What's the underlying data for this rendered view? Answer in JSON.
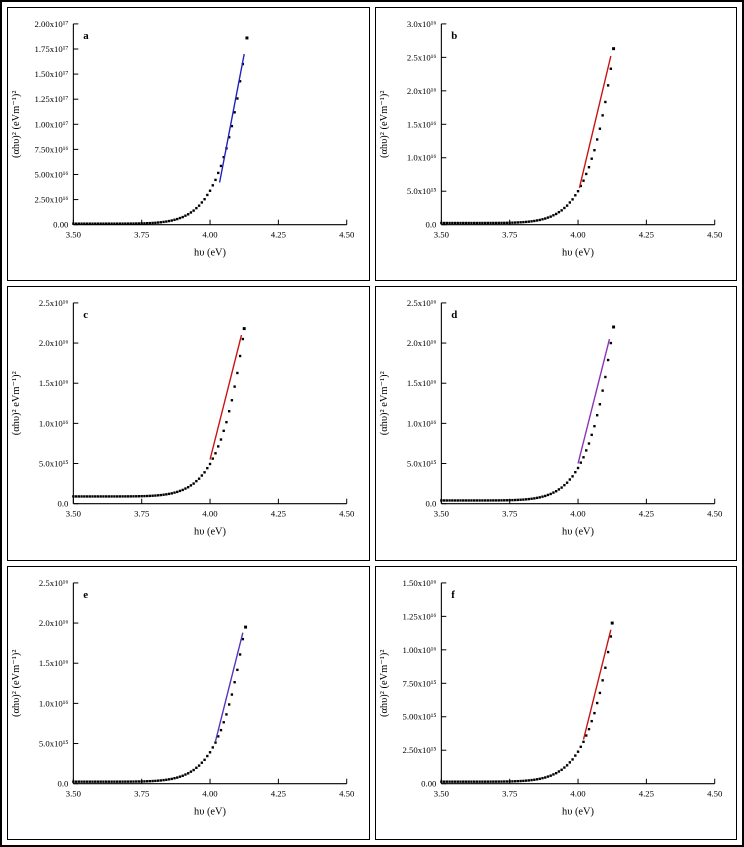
{
  "figure": {
    "background": "#ffffff",
    "border_color": "#000000",
    "panel_border_color": "#000000",
    "point_color": "#000000"
  },
  "chart_data": {
    "type": "scatter",
    "shared": {
      "x_label": "hυ (eV)",
      "x_range": [
        3.5,
        4.5
      ],
      "x_ticks": [
        3.5,
        3.75,
        4.0,
        4.25,
        4.5
      ],
      "x_tick_labels": [
        "3.50",
        "3.75",
        "4.00",
        "4.25",
        "4.50"
      ],
      "marker": "black-square",
      "curve_x": [
        3.5,
        3.52,
        3.54,
        3.56,
        3.58,
        3.6,
        3.62,
        3.64,
        3.66,
        3.68,
        3.7,
        3.72,
        3.74,
        3.76,
        3.78,
        3.8,
        3.82,
        3.84,
        3.86,
        3.88,
        3.9,
        3.92,
        3.94,
        3.96,
        3.98,
        4.0,
        4.02,
        4.04,
        4.06,
        4.08,
        4.1,
        4.12
      ],
      "curve_norm": [
        0,
        0,
        0,
        1e-06,
        2e-06,
        6e-06,
        1.7e-05,
        4.2e-05,
        9.3e-05,
        0.000193,
        0.000376,
        0.000696,
        0.001231,
        0.002101,
        0.003461,
        0.005547,
        0.008645,
        0.013182,
        0.019654,
        0.028787,
        0.041389,
        0.058644,
        0.081802,
        0.112717,
        0.153254,
        0.206216,
        0.27429,
        0.3616,
        0.471908,
        0.611127,
        0.78439,
        1.0
      ]
    },
    "panels": [
      {
        "label": "a",
        "y_label": "(αhυ)² (eVm⁻¹)²",
        "y_max": 2e+17,
        "y_ticks": [
          0,
          2.5e+16,
          5e+16,
          7.5e+16,
          1e+17,
          1.25e+17,
          1.5e+17,
          1.75e+17,
          2e+17
        ],
        "y_tick_labels": [
          "0.00",
          "2.50x10¹⁶",
          "5.00x10¹⁶",
          "7.50x10¹⁶",
          "1.00x10¹⁷",
          "1.25x10¹⁷",
          "1.50x10¹⁷",
          "1.75x10¹⁷",
          "2.00x10¹⁷"
        ],
        "base": 1000000000000000.0,
        "peak": 1.6e+17,
        "outlier": {
          "x": 4.135,
          "y": 1.86e+17
        },
        "fit": {
          "color": "#2020c0",
          "x1": 4.035,
          "y1": 4.2e+16,
          "x2": 4.125,
          "y2": 1.7e+17
        }
      },
      {
        "label": "b",
        "y_label": "(αhυ)² (eVm⁻¹)²",
        "y_max": 3e+16,
        "y_ticks": [
          0,
          5000000000000000.0,
          1e+16,
          1.5e+16,
          2e+16,
          2.5e+16,
          3e+16
        ],
        "y_tick_labels": [
          "0.0",
          "5.0x10¹⁵",
          "1.0x10¹⁶",
          "1.5x10¹⁶",
          "2.0x10¹⁶",
          "2.5x10¹⁶",
          "3.0x10¹⁶"
        ],
        "base": 250000000000000.0,
        "peak": 2.33e+16,
        "outlier": {
          "x": 4.13,
          "y": 2.63e+16
        },
        "fit": {
          "color": "#cc1111",
          "x1": 4.005,
          "y1": 5500000000000000.0,
          "x2": 4.12,
          "y2": 2.52e+16
        }
      },
      {
        "label": "c",
        "y_label": "(αhυ)² eVm⁻¹)²",
        "y_max": 2.5e+16,
        "y_ticks": [
          0,
          5000000000000000.0,
          1e+16,
          1.5e+16,
          2e+16,
          2.5e+16
        ],
        "y_tick_labels": [
          "0.0",
          "5.0x10¹⁵",
          "1.0x10¹⁶",
          "1.5x10¹⁶",
          "2.0x10¹⁶",
          "2.5x10¹⁶"
        ],
        "base": 900000000000000.0,
        "peak": 2.05e+16,
        "outlier": {
          "x": 4.125,
          "y": 2.18e+16
        },
        "fit": {
          "color": "#cc1111",
          "x1": 4.0,
          "y1": 5500000000000000.0,
          "x2": 4.115,
          "y2": 2.1e+16
        }
      },
      {
        "label": "d",
        "y_label": "(αhυ)² eVm⁻¹)²",
        "y_max": 2.5e+16,
        "y_ticks": [
          0,
          5000000000000000.0,
          1e+16,
          1.5e+16,
          2e+16,
          2.5e+16
        ],
        "y_tick_labels": [
          "0.0",
          "5.0x10¹⁵",
          "1.0x10¹⁶",
          "1.5x10¹⁶",
          "2.0x10¹⁶",
          "2.5x10¹⁶"
        ],
        "base": 400000000000000.0,
        "peak": 2e+16,
        "outlier": {
          "x": 4.13,
          "y": 2.2e+16
        },
        "fit": {
          "color": "#8833bb",
          "x1": 4.0,
          "y1": 5000000000000000.0,
          "x2": 4.115,
          "y2": 2.05e+16
        }
      },
      {
        "label": "e",
        "y_label": "(αhυ)² (eVm⁻¹)²",
        "y_max": 2.5e+16,
        "y_ticks": [
          0,
          5000000000000000.0,
          1e+16,
          1.5e+16,
          2e+16,
          2.5e+16
        ],
        "y_tick_labels": [
          "0.0",
          "5.0x10¹⁵",
          "1.0x10¹⁶",
          "1.5x10¹⁶",
          "2.0x10¹⁶",
          "2.5x10¹⁶"
        ],
        "base": 250000000000000.0,
        "peak": 1.8e+16,
        "outlier": {
          "x": 4.13,
          "y": 1.95e+16
        },
        "fit": {
          "color": "#5533bb",
          "x1": 4.02,
          "y1": 5300000000000000.0,
          "x2": 4.12,
          "y2": 1.88e+16
        }
      },
      {
        "label": "f",
        "y_label": "(αhυ)² (eVm⁻¹)²",
        "y_max": 1.5e+16,
        "y_ticks": [
          0,
          2500000000000000.0,
          5000000000000000.0,
          7500000000000000.0,
          1e+16,
          1.25e+16,
          1.5e+16
        ],
        "y_tick_labels": [
          "0.00",
          "2.50x10¹⁵",
          "5.00x10¹⁵",
          "7.50x10¹⁵",
          "1.00x10¹⁶",
          "1.25x10¹⁶",
          "1.50x10¹⁶"
        ],
        "base": 150000000000000.0,
        "peak": 1.1e+16,
        "outlier": {
          "x": 4.125,
          "y": 1.2e+16
        },
        "fit": {
          "color": "#cc1111",
          "x1": 4.02,
          "y1": 3300000000000000.0,
          "x2": 4.12,
          "y2": 1.15e+16
        }
      }
    ]
  }
}
